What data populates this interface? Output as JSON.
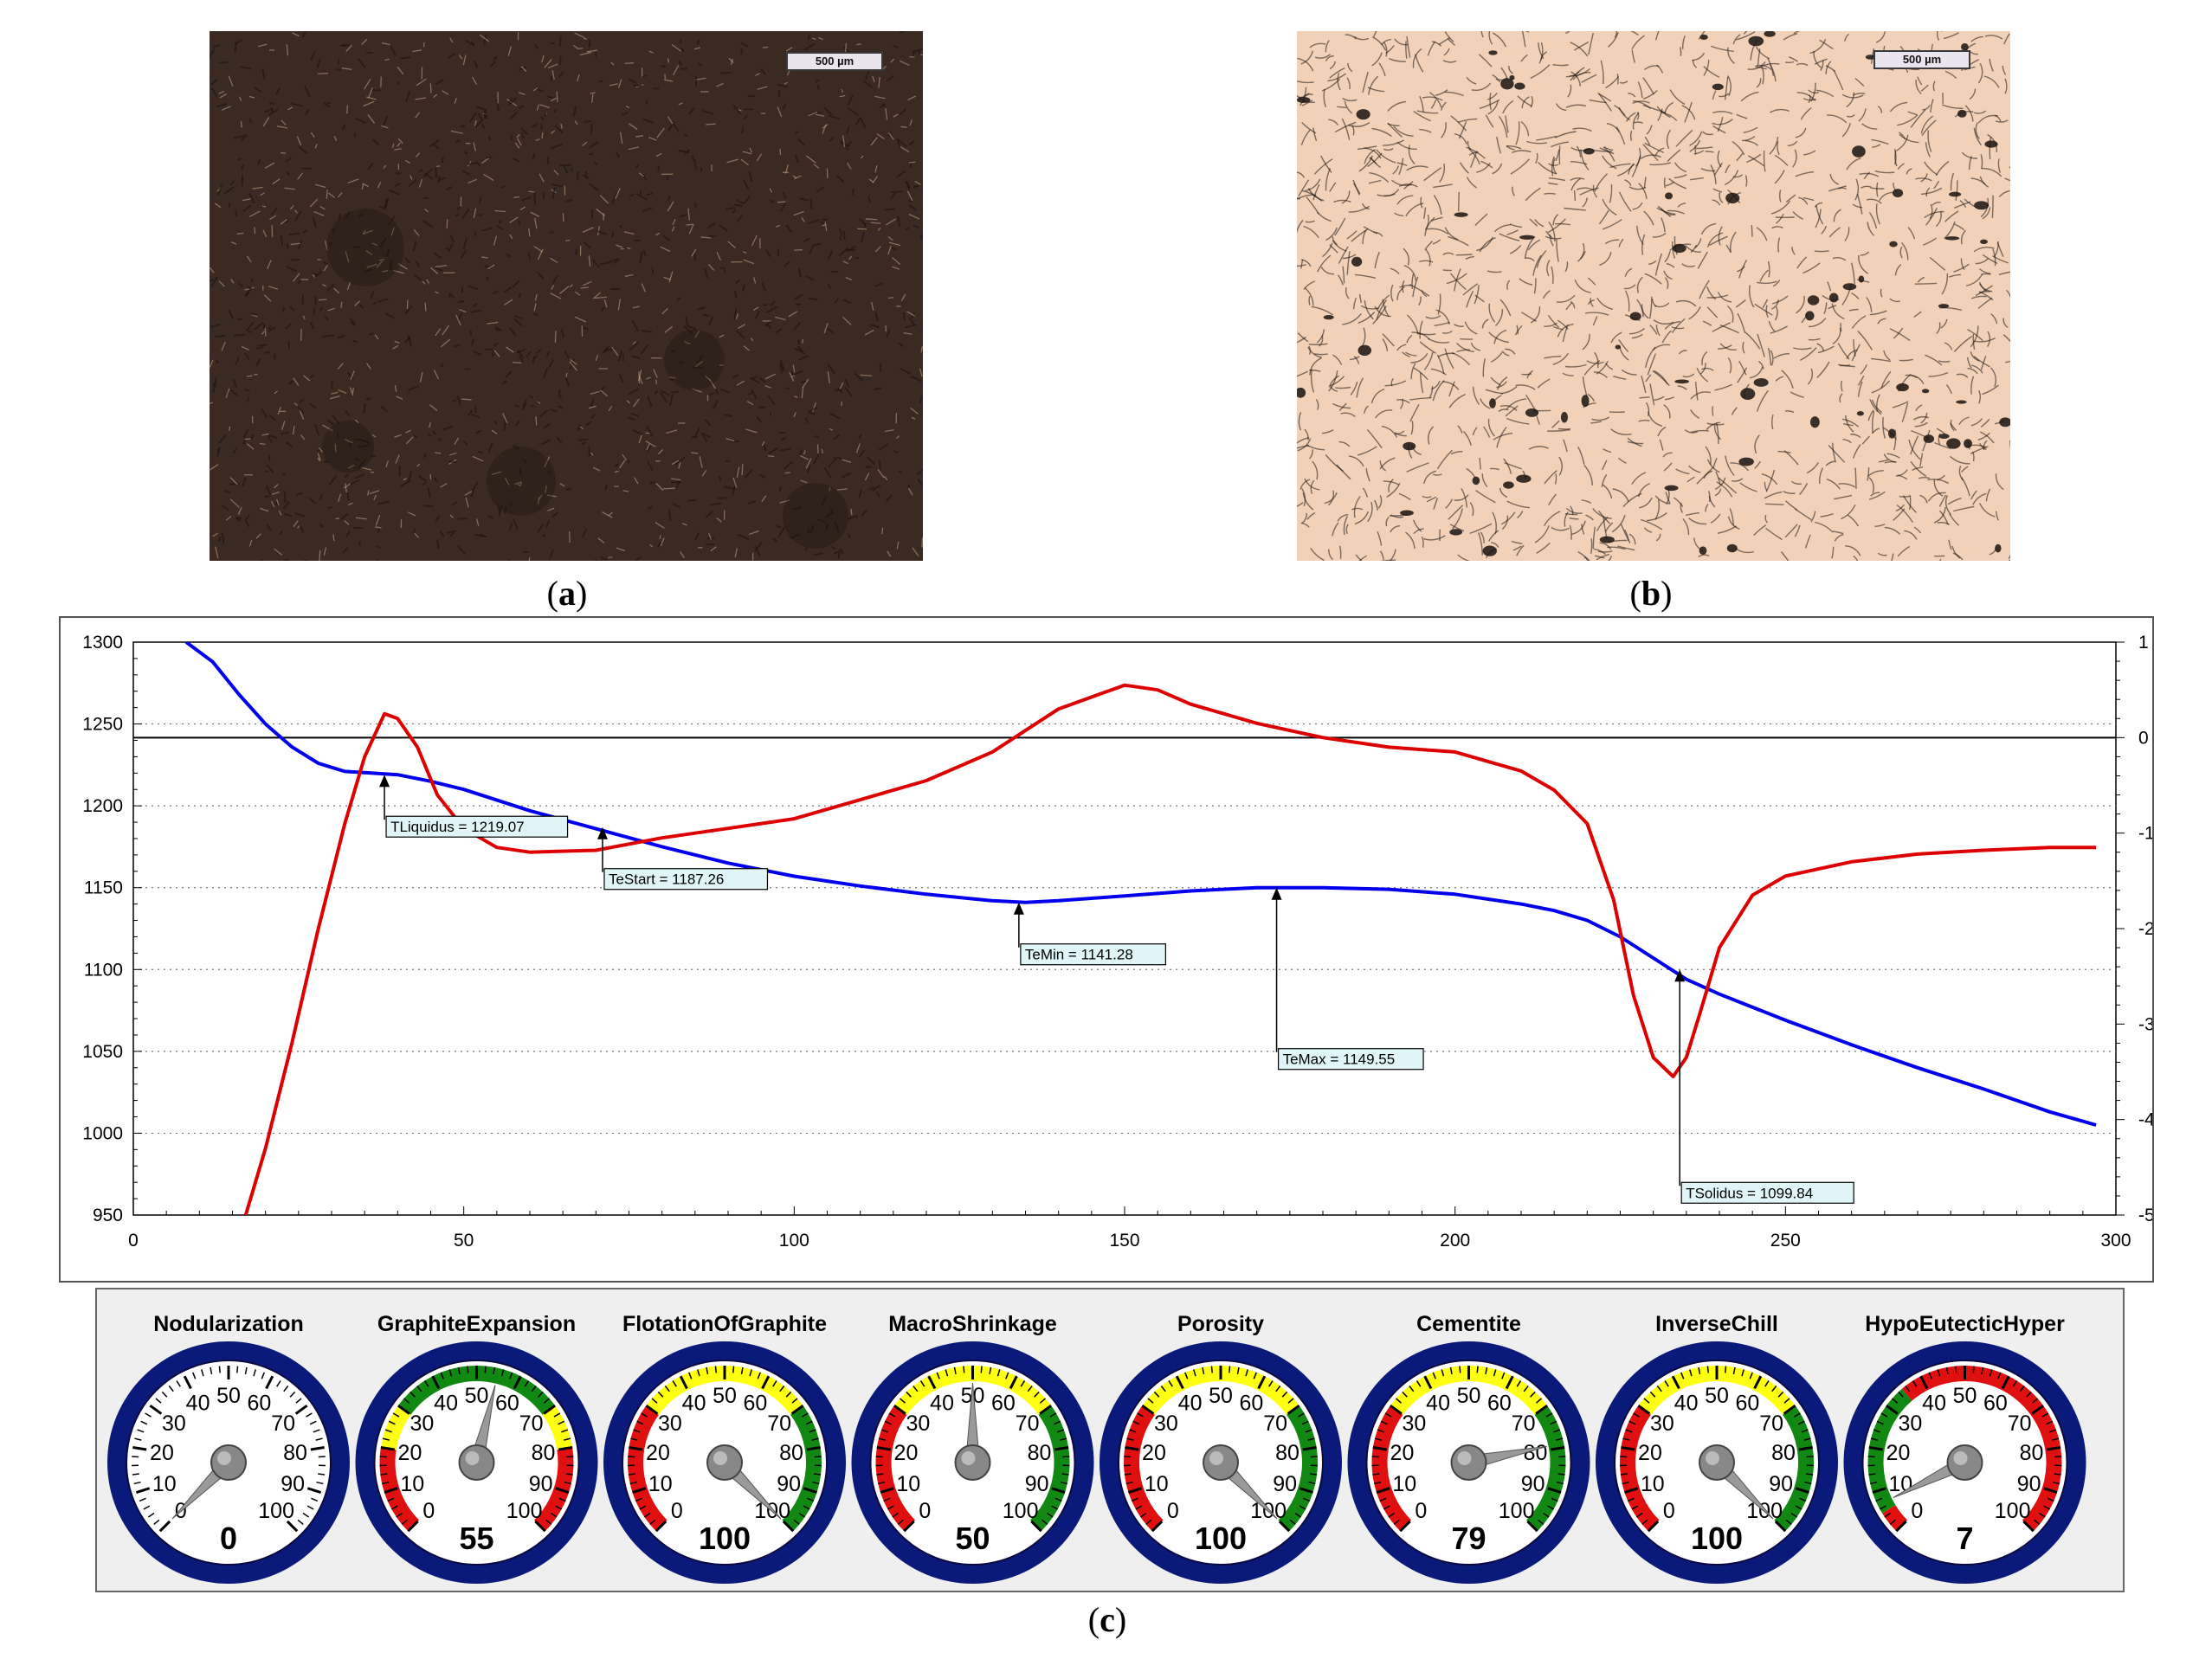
{
  "panels": {
    "a": {
      "caption_open": "(",
      "caption_letter": "a",
      "caption_close": ")",
      "scale_label": "500 µm",
      "colors": {
        "bg": "#3a2a22",
        "grain_light": "#c9a58a",
        "grain_dark": "#1c130f"
      }
    },
    "b": {
      "caption_open": "(",
      "caption_letter": "b",
      "caption_close": ")",
      "scale_label": "500 µm",
      "colors": {
        "bg": "#f1d1b8",
        "graphite": "#1a1410"
      }
    },
    "c": {
      "caption_open": "(",
      "caption_letter": "c",
      "caption_close": ")"
    }
  },
  "chart_data": {
    "type": "line",
    "x_ticks": [
      "0",
      "50",
      "100",
      "150",
      "200",
      "250",
      "300"
    ],
    "y_left_ticks": [
      "1300",
      "1250",
      "1200",
      "1150",
      "1100",
      "1050",
      "1000",
      "950"
    ],
    "y_right_ticks": [
      "1",
      "0",
      "-1",
      "-2",
      "-3",
      "-4",
      "-5"
    ],
    "xlim": [
      0,
      300
    ],
    "ylim_left": [
      950,
      1300
    ],
    "ylim_right": [
      -5,
      1
    ],
    "grid": "dotted horizontal",
    "series": [
      {
        "axis": "left",
        "color": "#0000ee",
        "x": [
          8,
          12,
          16,
          20,
          24,
          28,
          32,
          36,
          40,
          45,
          50,
          60,
          70,
          80,
          90,
          100,
          110,
          120,
          130,
          135,
          140,
          150,
          160,
          170,
          180,
          190,
          200,
          210,
          215,
          220,
          225,
          230,
          235,
          240,
          250,
          260,
          270,
          280,
          290,
          297
        ],
        "y": [
          1300,
          1288,
          1268,
          1250,
          1236,
          1226,
          1221,
          1220,
          1219,
          1215,
          1210,
          1197,
          1186,
          1175,
          1165,
          1157,
          1151,
          1146,
          1142,
          1141,
          1142,
          1145,
          1148,
          1150,
          1150,
          1149,
          1146,
          1140,
          1136,
          1130,
          1120,
          1107,
          1094,
          1085,
          1069,
          1054,
          1040,
          1027,
          1013,
          1005
        ]
      },
      {
        "axis": "right",
        "color": "#dd0000",
        "x": [
          17,
          20,
          24,
          28,
          32,
          35,
          38,
          40,
          43,
          46,
          50,
          55,
          60,
          70,
          80,
          90,
          100,
          110,
          120,
          130,
          140,
          150,
          155,
          160,
          170,
          180,
          190,
          200,
          205,
          210,
          215,
          220,
          224,
          227,
          230,
          233,
          235,
          237,
          240,
          245,
          250,
          260,
          270,
          280,
          290,
          297
        ],
        "y": [
          -5.0,
          -4.3,
          -3.2,
          -2.0,
          -0.9,
          -0.2,
          0.25,
          0.2,
          -0.1,
          -0.6,
          -0.95,
          -1.15,
          -1.2,
          -1.18,
          -1.05,
          -0.95,
          -0.85,
          -0.65,
          -0.45,
          -0.15,
          0.3,
          0.55,
          0.5,
          0.35,
          0.15,
          0.0,
          -0.1,
          -0.15,
          -0.25,
          -0.35,
          -0.55,
          -0.9,
          -1.7,
          -2.7,
          -3.35,
          -3.55,
          -3.35,
          -2.9,
          -2.2,
          -1.65,
          -1.45,
          -1.3,
          -1.22,
          -1.18,
          -1.15,
          -1.15
        ]
      }
    ],
    "reference_line_right": 0,
    "annotations": [
      {
        "label": "TLiquidus = 1219.07",
        "x": 38,
        "point_y": 1219
      },
      {
        "label": "TeStart = 1187.26",
        "x": 71,
        "point_y": 1187
      },
      {
        "label": "TeMin = 1141.28",
        "x": 134,
        "point_y": 1141
      },
      {
        "label": "TeMax = 1149.55",
        "x": 173,
        "point_y": 1150
      },
      {
        "label": "TSolidus = 1099.84",
        "x": 234,
        "point_y": 1100
      }
    ]
  },
  "gauges": [
    {
      "title": "Nodularization",
      "value": 0,
      "display": "0",
      "zones": []
    },
    {
      "title": "GraphiteExpansion",
      "value": 55,
      "display": "55",
      "zones": [
        [
          "red",
          0,
          20
        ],
        [
          "yellow",
          20,
          30
        ],
        [
          "green",
          30,
          70
        ],
        [
          "yellow",
          70,
          80
        ],
        [
          "red",
          80,
          100
        ]
      ]
    },
    {
      "title": "FlotationOfGraphite",
      "value": 100,
      "display": "100",
      "zones": [
        [
          "red",
          0,
          30
        ],
        [
          "yellow",
          30,
          70
        ],
        [
          "green",
          70,
          100
        ]
      ]
    },
    {
      "title": "MacroShrinkage",
      "value": 50,
      "display": "50",
      "zones": [
        [
          "red",
          0,
          30
        ],
        [
          "yellow",
          30,
          70
        ],
        [
          "green",
          70,
          100
        ]
      ]
    },
    {
      "title": "Porosity",
      "value": 100,
      "display": "100",
      "zones": [
        [
          "red",
          0,
          30
        ],
        [
          "yellow",
          30,
          70
        ],
        [
          "green",
          70,
          100
        ]
      ]
    },
    {
      "title": "Cementite",
      "value": 79,
      "display": "79",
      "zones": [
        [
          "red",
          0,
          30
        ],
        [
          "yellow",
          30,
          70
        ],
        [
          "green",
          70,
          100
        ]
      ]
    },
    {
      "title": "InverseChill",
      "value": 100,
      "display": "100",
      "zones": [
        [
          "red",
          0,
          30
        ],
        [
          "yellow",
          30,
          70
        ],
        [
          "green",
          70,
          100
        ]
      ]
    },
    {
      "title": "HypoEutecticHyper",
      "value": 7,
      "display": "7",
      "zones": [
        [
          "red",
          0,
          5
        ],
        [
          "green",
          5,
          35
        ],
        [
          "red",
          35,
          100
        ]
      ]
    }
  ],
  "gauge_scale_labels": [
    "0",
    "10",
    "20",
    "30",
    "40",
    "50",
    "60",
    "70",
    "80",
    "90",
    "100"
  ],
  "gauge_colors": {
    "rim": "#0a1a7a",
    "red": "#e01010",
    "yellow": "#ffff10",
    "green": "#118811",
    "needle": "#9a9a9a"
  }
}
